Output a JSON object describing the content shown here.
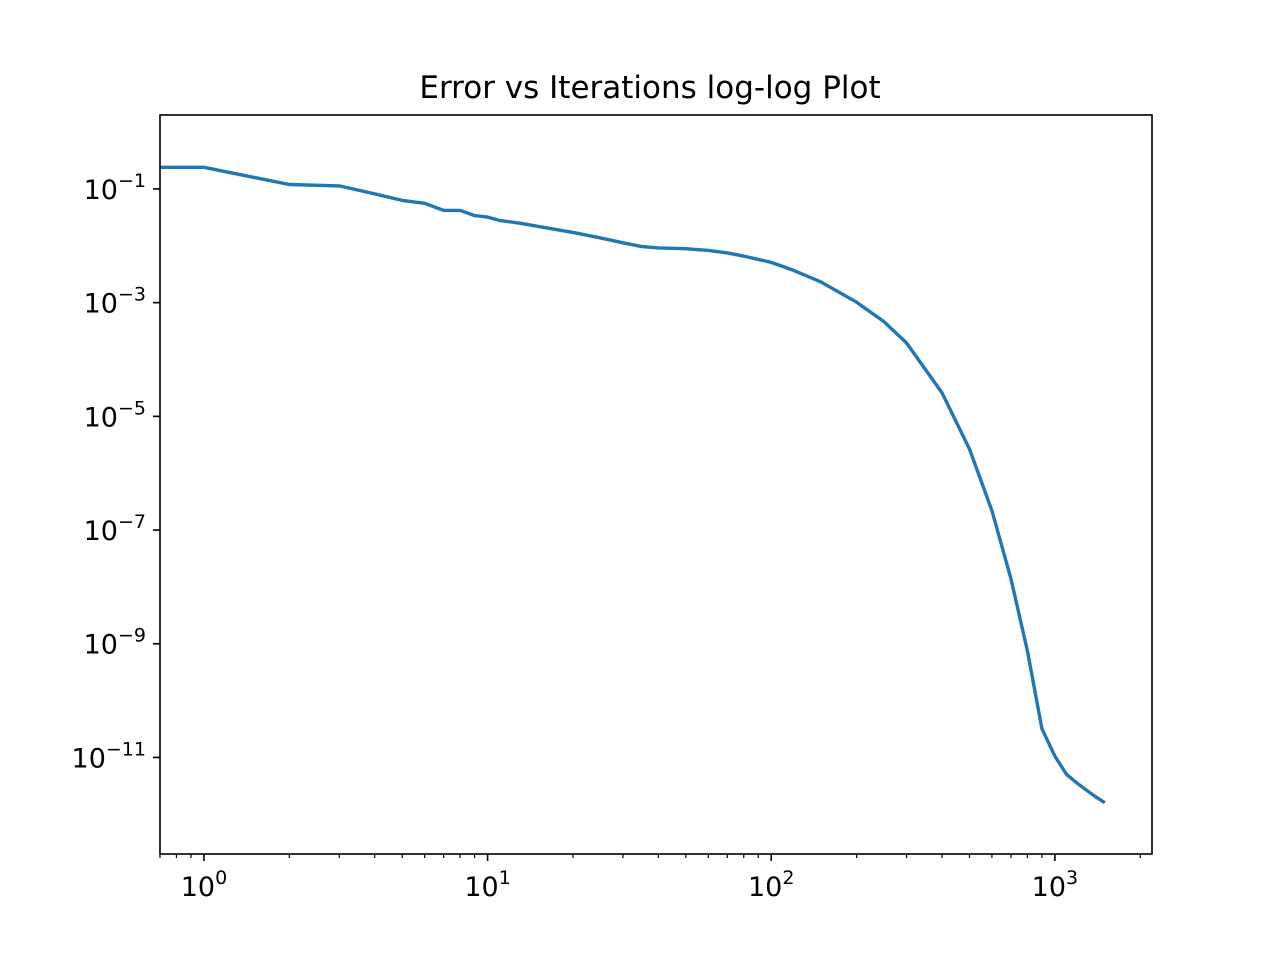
{
  "chart_data": {
    "type": "line",
    "title": "Error vs Iterations log-log Plot",
    "xlabel": "",
    "ylabel": "",
    "xscale": "log",
    "yscale": "log",
    "xlim": [
      0.7,
      2200
    ],
    "ylim": [
      2e-13,
      2
    ],
    "grid": false,
    "legend": "none",
    "x_ticks": [
      {
        "value": 1,
        "base": "10",
        "exp": "0"
      },
      {
        "value": 10,
        "base": "10",
        "exp": "1"
      },
      {
        "value": 100,
        "base": "10",
        "exp": "2"
      },
      {
        "value": 1000,
        "base": "10",
        "exp": "3"
      }
    ],
    "y_ticks": [
      {
        "value": 0.1,
        "base": "10",
        "exp": "−1"
      },
      {
        "value": 0.001,
        "base": "10",
        "exp": "−3"
      },
      {
        "value": 1e-05,
        "base": "10",
        "exp": "−5"
      },
      {
        "value": 1e-07,
        "base": "10",
        "exp": "−7"
      },
      {
        "value": 1e-09,
        "base": "10",
        "exp": "−9"
      },
      {
        "value": 1e-11,
        "base": "10",
        "exp": "−11"
      }
    ],
    "colors": {
      "line": "#1f77b4",
      "axes": "#000000"
    },
    "series": [
      {
        "x": [
          0.7,
          1,
          2,
          3,
          4,
          5,
          6,
          7,
          8,
          9,
          10,
          11,
          13,
          15,
          20,
          25,
          30,
          35,
          40,
          50,
          60,
          70,
          80,
          100,
          120,
          150,
          200,
          250,
          300,
          400,
          500,
          600,
          700,
          800,
          900,
          1000,
          1100,
          1200,
          1300,
          1400,
          1500
        ],
        "y": [
          0.24,
          0.24,
          0.12,
          0.113,
          0.082,
          0.063,
          0.056,
          0.042,
          0.042,
          0.034,
          0.032,
          0.028,
          0.025,
          0.022,
          0.0172,
          0.0138,
          0.0113,
          0.0097,
          0.0092,
          0.0089,
          0.0083,
          0.0075,
          0.0066,
          0.0051,
          0.0037,
          0.0023,
          0.00102,
          0.00046,
          0.000195,
          2.6e-05,
          2.65e-06,
          2.2e-07,
          1.4e-08,
          7.5e-10,
          3.2e-11,
          1.05e-11,
          5e-12,
          3.5e-12,
          2.6e-12,
          2e-12,
          1.6e-12
        ]
      }
    ]
  }
}
